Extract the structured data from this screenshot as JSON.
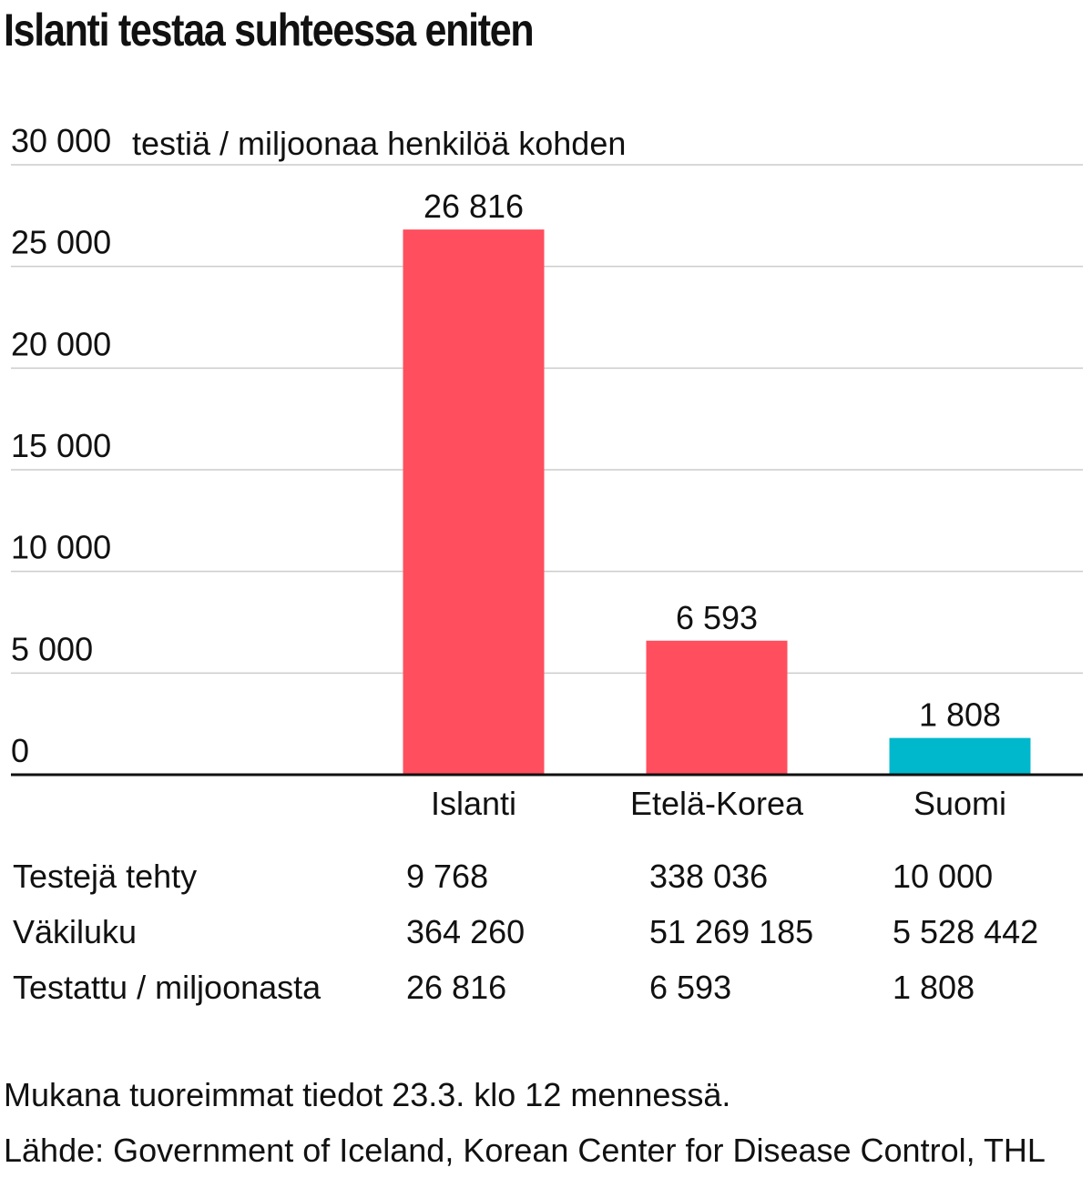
{
  "title": "Islanti testaa suhteessa eniten",
  "chart_data": {
    "type": "bar",
    "unit_label": "testiä / miljoonaa henkilöä kohden",
    "categories": [
      "Islanti",
      "Etelä-Korea",
      "Suomi"
    ],
    "values": [
      26816,
      6593,
      1808
    ],
    "value_labels": [
      "26 816",
      "6 593",
      "1 808"
    ],
    "colors": [
      "#ff4f5e",
      "#ff4f5e",
      "#00b8cc"
    ],
    "ylim": [
      0,
      30000
    ],
    "yticks": [
      0,
      5000,
      10000,
      15000,
      20000,
      25000,
      30000
    ],
    "ytick_labels": [
      "0",
      "5 000",
      "10 000",
      "15 000",
      "20 000",
      "25 000",
      "30 000"
    ],
    "grid": true,
    "gridline_color": "#cccccc",
    "axis_color": "#111111"
  },
  "table": {
    "rows": [
      {
        "label": "Testejä tehty",
        "values": [
          "9 768",
          "338 036",
          "10 000"
        ]
      },
      {
        "label": "Väkiluku",
        "values": [
          "364 260",
          "51 269 185",
          "5 528 442"
        ]
      },
      {
        "label": "Testattu / miljoonasta",
        "values": [
          "26 816",
          "6 593",
          "1 808"
        ]
      }
    ]
  },
  "footer": {
    "note": "Mukana tuoreimmat tiedot 23.3. klo 12 mennessä.",
    "source": "Lähde: Government of Iceland, Korean Center for Disease Control, THL"
  }
}
